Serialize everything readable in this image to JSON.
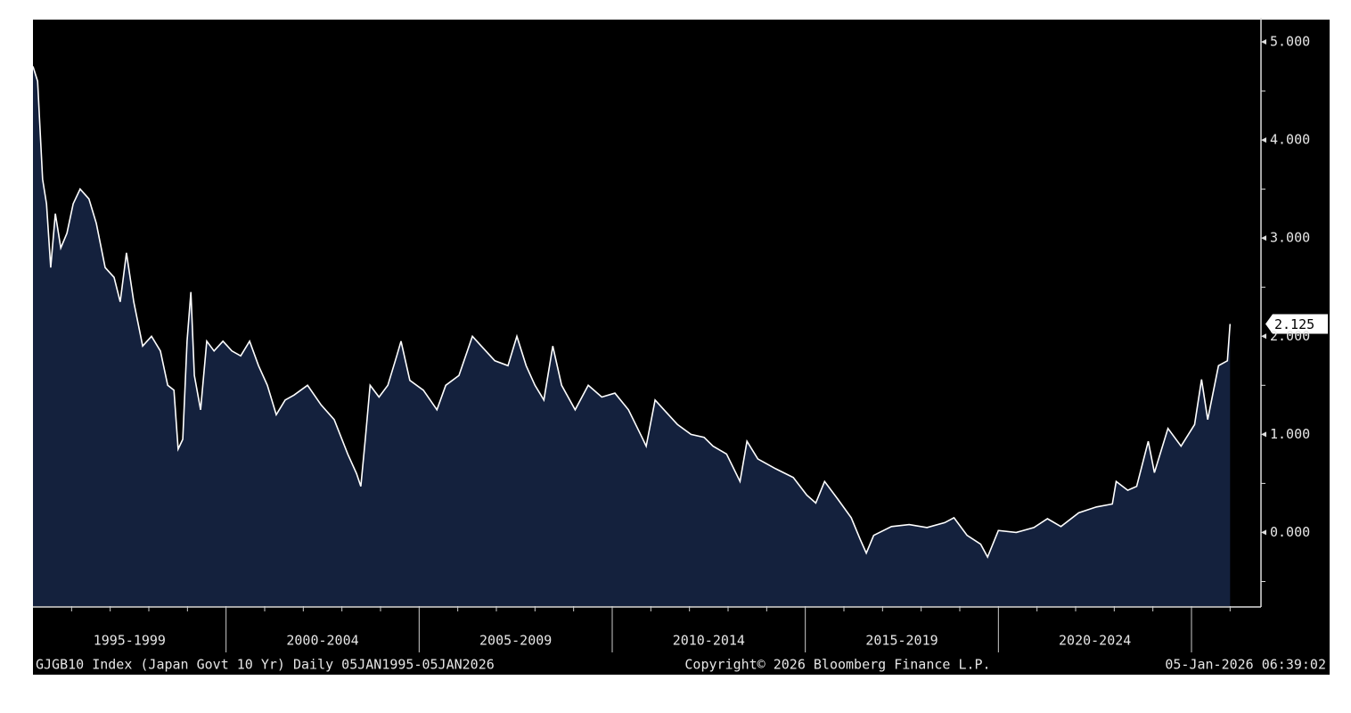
{
  "chart_data": {
    "type": "area",
    "x": [
      1995.0,
      1995.12,
      1995.25,
      1995.35,
      1995.46,
      1995.58,
      1995.72,
      1995.88,
      1996.04,
      1996.22,
      1996.45,
      1996.64,
      1996.87,
      1997.1,
      1997.26,
      1997.42,
      1997.61,
      1997.84,
      1998.07,
      1998.3,
      1998.49,
      1998.65,
      1998.76,
      1998.88,
      1998.99,
      1999.09,
      1999.18,
      1999.34,
      1999.5,
      1999.69,
      1999.92,
      2000.15,
      2000.38,
      2000.61,
      2000.84,
      2001.07,
      2001.3,
      2001.53,
      2001.76,
      2002.11,
      2002.46,
      2002.8,
      2003.15,
      2003.38,
      2003.49,
      2003.61,
      2003.73,
      2003.96,
      2004.19,
      2004.42,
      2004.53,
      2004.76,
      2005.11,
      2005.46,
      2005.69,
      2006.03,
      2006.38,
      2006.61,
      2006.96,
      2007.3,
      2007.53,
      2007.77,
      2008.0,
      2008.23,
      2008.46,
      2008.69,
      2009.04,
      2009.38,
      2009.73,
      2010.07,
      2010.42,
      2010.77,
      2010.88,
      2011.11,
      2011.34,
      2011.69,
      2012.04,
      2012.38,
      2012.61,
      2012.96,
      2013.31,
      2013.49,
      2013.77,
      2014.23,
      2014.69,
      2015.04,
      2015.27,
      2015.5,
      2015.84,
      2016.19,
      2016.42,
      2016.58,
      2016.77,
      2017.23,
      2017.69,
      2018.15,
      2018.61,
      2018.85,
      2019.19,
      2019.54,
      2019.72,
      2020.0,
      2020.46,
      2020.92,
      2021.27,
      2021.62,
      2022.08,
      2022.54,
      2022.95,
      2023.05,
      2023.35,
      2023.58,
      2023.88,
      2024.04,
      2024.39,
      2024.73,
      2025.08,
      2025.26,
      2025.42,
      2025.7,
      2025.93,
      2026.0
    ],
    "series": [
      {
        "name": "GJGB10 Index",
        "color": "#ffffff",
        "fill": "#14213d",
        "values": [
          4.75,
          4.6,
          3.6,
          3.35,
          2.7,
          3.25,
          2.9,
          3.05,
          3.35,
          3.5,
          3.4,
          3.15,
          2.7,
          2.6,
          2.35,
          2.85,
          2.35,
          1.9,
          2.0,
          1.85,
          1.5,
          1.45,
          0.85,
          0.95,
          1.95,
          2.45,
          1.6,
          1.25,
          1.95,
          1.85,
          1.95,
          1.85,
          1.8,
          1.95,
          1.7,
          1.5,
          1.2,
          1.35,
          1.4,
          1.5,
          1.3,
          1.15,
          0.8,
          0.6,
          0.47,
          0.97,
          1.5,
          1.38,
          1.5,
          1.8,
          1.95,
          1.55,
          1.45,
          1.25,
          1.5,
          1.6,
          2.0,
          1.9,
          1.75,
          1.7,
          2.0,
          1.7,
          1.5,
          1.35,
          1.9,
          1.5,
          1.25,
          1.5,
          1.38,
          1.42,
          1.25,
          0.97,
          0.88,
          1.35,
          1.25,
          1.1,
          1.0,
          0.97,
          0.88,
          0.8,
          0.52,
          0.93,
          0.75,
          0.65,
          0.56,
          0.38,
          0.3,
          0.52,
          0.34,
          0.15,
          -0.07,
          -0.21,
          -0.03,
          0.06,
          0.08,
          0.05,
          0.1,
          0.15,
          -0.03,
          -0.12,
          -0.25,
          0.02,
          0.0,
          0.05,
          0.14,
          0.06,
          0.2,
          0.26,
          0.29,
          0.52,
          0.43,
          0.47,
          0.93,
          0.61,
          1.06,
          0.88,
          1.1,
          1.56,
          1.15,
          1.7,
          1.75,
          2.125
        ]
      }
    ],
    "last_value_label": "2.125",
    "xlim": [
      1995,
      2026.8
    ],
    "xticks": [
      2000,
      2005,
      2010,
      2015,
      2020,
      2025
    ],
    "xminorticks": [
      1996,
      1997,
      1998,
      1999,
      2001,
      2002,
      2003,
      2004,
      2006,
      2007,
      2008,
      2009,
      2011,
      2012,
      2013,
      2014,
      2016,
      2017,
      2018,
      2019,
      2021,
      2022,
      2023,
      2024,
      2026
    ],
    "periods": [
      {
        "label": "1995-1999",
        "start": 1995,
        "end": 2000
      },
      {
        "label": "2000-2004",
        "start": 2000,
        "end": 2005
      },
      {
        "label": "2005-2009",
        "start": 2005,
        "end": 2010
      },
      {
        "label": "2010-2014",
        "start": 2010,
        "end": 2015
      },
      {
        "label": "2015-2019",
        "start": 2015,
        "end": 2020
      },
      {
        "label": "2020-2024",
        "start": 2020,
        "end": 2025
      }
    ],
    "ylim": [
      -0.75,
      5.2
    ],
    "yticks": [
      {
        "value": 0,
        "label": "0.000"
      },
      {
        "value": 1,
        "label": "1.000"
      },
      {
        "value": 2,
        "label": "2.000"
      },
      {
        "value": 3,
        "label": "3.000"
      },
      {
        "value": 4,
        "label": "4.000"
      },
      {
        "value": 5,
        "label": "5.000"
      }
    ],
    "yminorticks": [
      -0.5,
      0.5,
      1.5,
      2.5,
      3.5,
      4.5
    ],
    "footer": {
      "left": "GJGB10 Index (Japan Govt 10 Yr) Daily 05JAN1995-05JAN2026",
      "center": "Copyright© 2026 Bloomberg Finance L.P.",
      "right": "05-Jan-2026 06:39:02"
    }
  }
}
